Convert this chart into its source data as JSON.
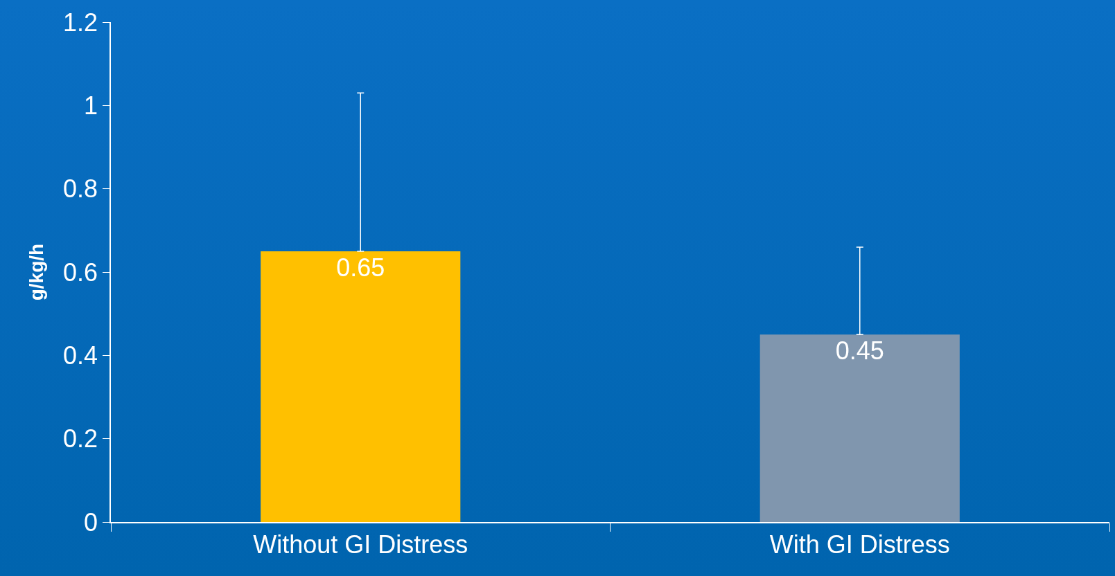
{
  "chart_data": {
    "type": "bar",
    "ylabel": "g/kg/h",
    "categories": [
      "Without GI Distress",
      "With GI Distress"
    ],
    "values": [
      0.65,
      0.45
    ],
    "colors": [
      "#ffc000",
      "#8096ae"
    ],
    "errors": [
      [
        0.65,
        1.03
      ],
      [
        0.45,
        0.66
      ]
    ],
    "ylim": [
      0,
      1.2
    ],
    "yticks": [
      0,
      0.2,
      0.4,
      0.6,
      0.8,
      1,
      1.2
    ],
    "grid": false,
    "data_labels": true
  }
}
